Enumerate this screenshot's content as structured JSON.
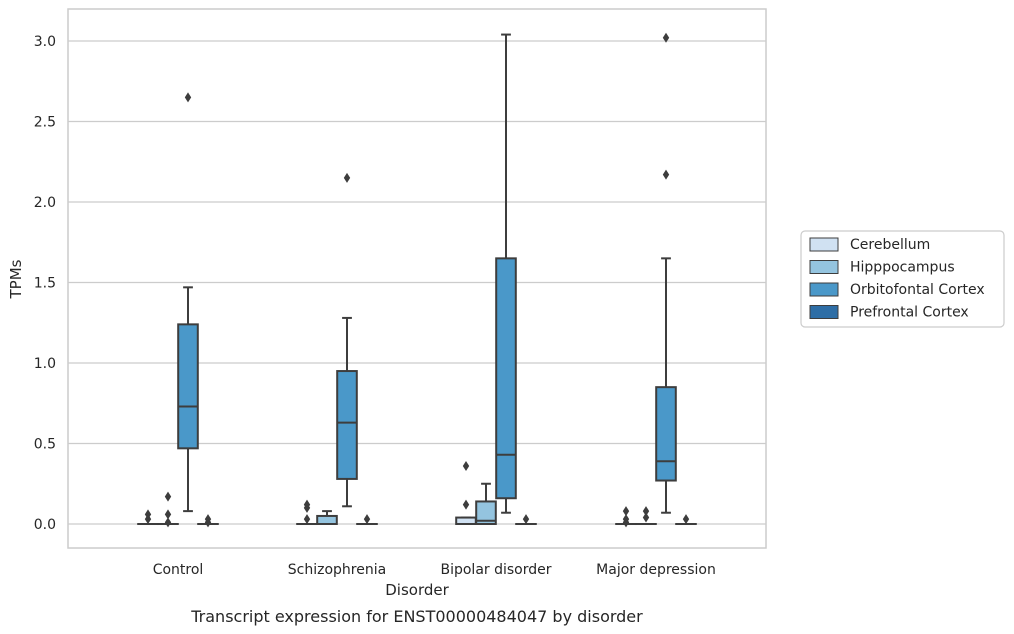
{
  "chart_data": {
    "type": "box",
    "caption": "Transcript expression for ENST00000484047 by disorder",
    "xlabel": "Disorder",
    "ylabel": "TPMs",
    "ylim": [
      -0.15,
      3.2
    ],
    "yticks": [
      "0.0",
      "0.5",
      "1.0",
      "1.5",
      "2.0",
      "2.5",
      "3.0"
    ],
    "grid": "horizontal",
    "legend_position": "right",
    "categories": [
      "Control",
      "Schizophrenia",
      "Bipolar disorder",
      "Major depression"
    ],
    "series": [
      {
        "name": "Cerebellum",
        "color": "#d0e1f2",
        "boxes": [
          {
            "q1": 0,
            "median": 0,
            "q3": 0,
            "whislo": 0,
            "whishi": 0,
            "fliers": [
              0.03,
              0.06
            ]
          },
          {
            "q1": 0,
            "median": 0,
            "q3": 0,
            "whislo": 0,
            "whishi": 0,
            "fliers": [
              0.03,
              0.1,
              0.12
            ]
          },
          {
            "q1": 0,
            "median": 0,
            "q3": 0.04,
            "whislo": 0,
            "whishi": 0.04,
            "fliers": [
              0.12,
              0.36
            ]
          },
          {
            "q1": 0,
            "median": 0,
            "q3": 0,
            "whislo": 0,
            "whishi": 0,
            "fliers": [
              0.01,
              0.03,
              0.08
            ]
          }
        ]
      },
      {
        "name": "Hipppocampus",
        "color": "#94c4df",
        "boxes": [
          {
            "q1": 0,
            "median": 0,
            "q3": 0,
            "whislo": 0,
            "whishi": 0,
            "fliers": [
              0.01,
              0.06,
              0.17
            ]
          },
          {
            "q1": 0,
            "median": 0,
            "q3": 0.05,
            "whislo": 0,
            "whishi": 0.08,
            "fliers": []
          },
          {
            "q1": 0,
            "median": 0.02,
            "q3": 0.14,
            "whislo": 0,
            "whishi": 0.25,
            "fliers": []
          },
          {
            "q1": 0,
            "median": 0,
            "q3": 0,
            "whislo": 0,
            "whishi": 0,
            "fliers": [
              0.04,
              0.08
            ]
          }
        ]
      },
      {
        "name": "Orbitofontal Cortex",
        "color": "#4a98c9",
        "boxes": [
          {
            "q1": 0.47,
            "median": 0.73,
            "q3": 1.24,
            "whislo": 0.08,
            "whishi": 1.47,
            "fliers": [
              2.65
            ]
          },
          {
            "q1": 0.28,
            "median": 0.63,
            "q3": 0.95,
            "whislo": 0.11,
            "whishi": 1.28,
            "fliers": [
              2.15
            ]
          },
          {
            "q1": 0.16,
            "median": 0.43,
            "q3": 1.65,
            "whislo": 0.07,
            "whishi": 3.04,
            "fliers": []
          },
          {
            "q1": 0.27,
            "median": 0.39,
            "q3": 0.85,
            "whislo": 0.07,
            "whishi": 1.65,
            "fliers": [
              2.17,
              3.02
            ]
          }
        ]
      },
      {
        "name": "Prefrontal Cortex",
        "color": "#2e6ea6",
        "boxes": [
          {
            "q1": 0,
            "median": 0,
            "q3": 0,
            "whislo": 0,
            "whishi": 0,
            "fliers": [
              0.01,
              0.03
            ]
          },
          {
            "q1": 0,
            "median": 0,
            "q3": 0,
            "whislo": 0,
            "whishi": 0,
            "fliers": [
              0.03
            ]
          },
          {
            "q1": 0,
            "median": 0,
            "q3": 0,
            "whislo": 0,
            "whishi": 0,
            "fliers": [
              0.03
            ]
          },
          {
            "q1": 0,
            "median": 0,
            "q3": 0,
            "whislo": 0,
            "whishi": 0,
            "fliers": [
              0.03
            ]
          }
        ]
      }
    ]
  }
}
